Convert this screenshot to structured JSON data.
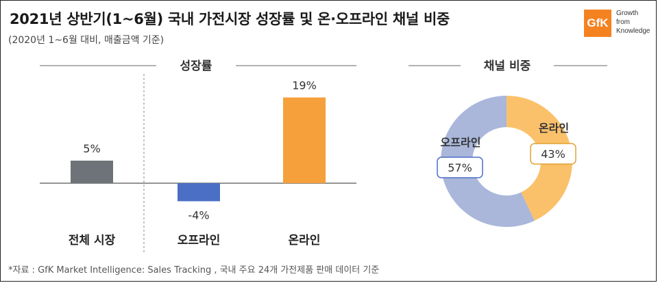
{
  "title": "2021년 상반기(1~6월) 국내 가전시장 성장률 및 온·오프라인 채널 비중",
  "subtitle": "(2020년 1~6월 대비, 매출금액 기준)",
  "logo": {
    "mark": "GfK",
    "tagline": [
      "Growth",
      "from",
      "Knowledge"
    ]
  },
  "footer": "*자료 : GfK Market Intelligence: Sales Tracking , 국내 주요 24개 가전제품 판매 데이터 기준",
  "colors": {
    "total": "#6d7378",
    "offline": "#4a6fc4",
    "online": "#f5a03a",
    "donut_offline": "#aab7db",
    "donut_online": "#fbc16a"
  },
  "chart_data": [
    {
      "type": "bar",
      "title": "성장률",
      "categories": [
        "전체 시장",
        "오프라인",
        "온라인"
      ],
      "values": [
        5,
        -4,
        19
      ],
      "value_labels": [
        "5%",
        "-4%",
        "19%"
      ],
      "unit": "%"
    },
    {
      "type": "pie",
      "variant": "donut",
      "title": "채널 비중",
      "labels": [
        "온라인",
        "오프라인"
      ],
      "values": [
        43,
        57
      ],
      "value_labels": [
        "43%",
        "57%"
      ]
    }
  ]
}
